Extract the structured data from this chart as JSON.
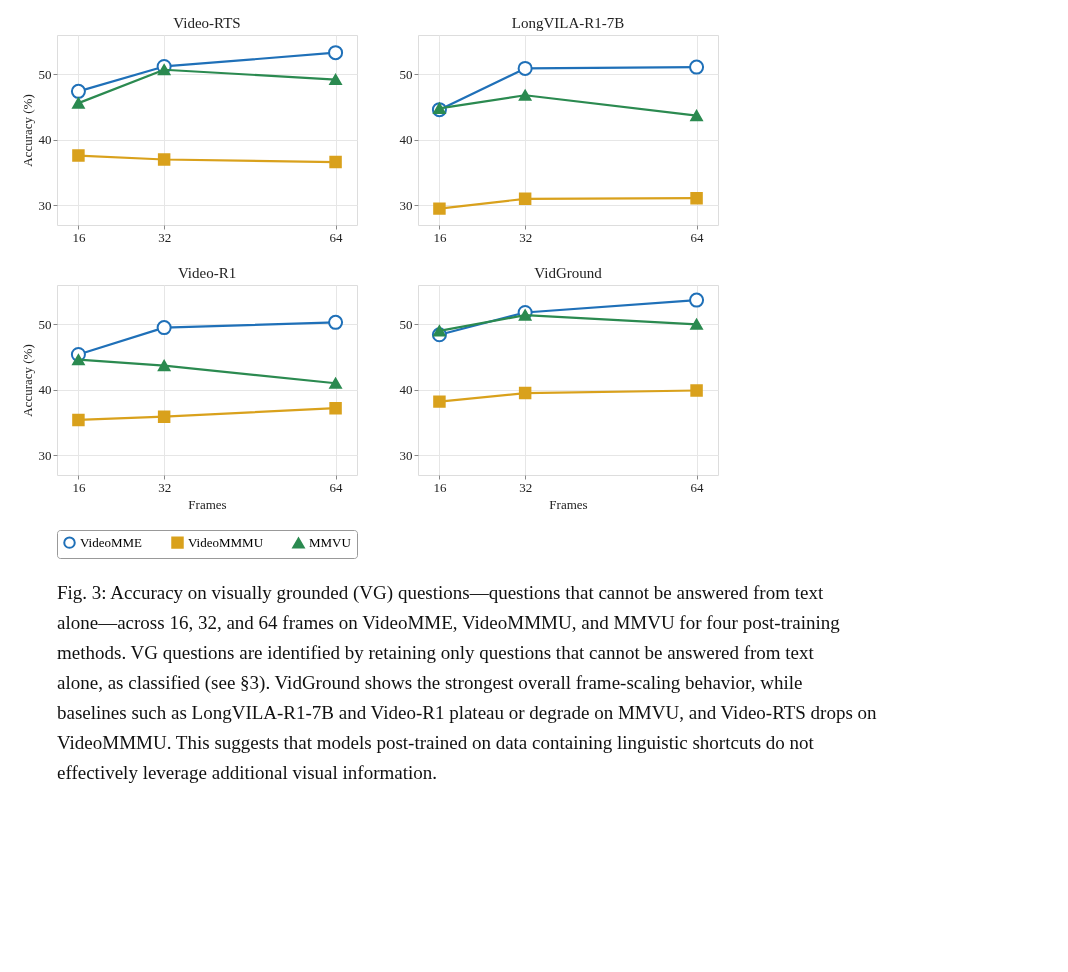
{
  "chart_data": [
    {
      "type": "line",
      "title": "Video-RTS",
      "ylabel": "Accuracy (%)",
      "x": [
        16,
        32,
        64
      ],
      "xlim": [
        12,
        68
      ],
      "ylim": [
        27,
        56
      ],
      "xticks": [
        16,
        32,
        64
      ],
      "yticks": [
        30,
        40,
        50
      ],
      "grid": true,
      "legend": "bottom",
      "line_style": "solid",
      "series": [
        {
          "name": "VideoMME",
          "color": "#1f70b8",
          "marker": "circle",
          "values": [
            47.4,
            51.2,
            53.3
          ]
        },
        {
          "name": "VideoMMMU",
          "color": "#d9a11c",
          "marker": "square",
          "values": [
            37.6,
            37.0,
            36.6
          ]
        },
        {
          "name": "MMVU",
          "color": "#2b8a50",
          "marker": "triangle",
          "values": [
            45.6,
            50.7,
            49.2
          ]
        }
      ]
    },
    {
      "type": "line",
      "title": "LongVILA-R1-7B",
      "x": [
        16,
        32,
        64
      ],
      "xlim": [
        12,
        68
      ],
      "ylim": [
        27,
        56
      ],
      "xticks": [
        16,
        32,
        64
      ],
      "yticks": [
        30,
        40,
        50
      ],
      "grid": true,
      "legend": "bottom",
      "line_style": "solid",
      "series": [
        {
          "name": "VideoMME",
          "color": "#1f70b8",
          "marker": "circle",
          "values": [
            44.6,
            50.9,
            51.1
          ]
        },
        {
          "name": "VideoMMMU",
          "color": "#d9a11c",
          "marker": "square",
          "values": [
            29.5,
            31.0,
            31.1
          ]
        },
        {
          "name": "MMVU",
          "color": "#2b8a50",
          "marker": "triangle",
          "values": [
            44.8,
            46.8,
            43.7
          ]
        }
      ]
    },
    {
      "type": "line",
      "title": "Video-R1",
      "xlabel": "Frames",
      "ylabel": "Accuracy (%)",
      "x": [
        16,
        32,
        64
      ],
      "xlim": [
        12,
        68
      ],
      "ylim": [
        27,
        56
      ],
      "xticks": [
        16,
        32,
        64
      ],
      "yticks": [
        30,
        40,
        50
      ],
      "grid": true,
      "legend": "bottom",
      "line_style": "solid",
      "series": [
        {
          "name": "VideoMME",
          "color": "#1f70b8",
          "marker": "circle",
          "values": [
            45.4,
            49.5,
            50.3
          ]
        },
        {
          "name": "VideoMMMU",
          "color": "#d9a11c",
          "marker": "square",
          "values": [
            35.4,
            35.9,
            37.2
          ]
        },
        {
          "name": "MMVU",
          "color": "#2b8a50",
          "marker": "triangle",
          "values": [
            44.6,
            43.7,
            41.0
          ]
        }
      ]
    },
    {
      "type": "line",
      "title": "VidGround",
      "xlabel": "Frames",
      "x": [
        16,
        32,
        64
      ],
      "xlim": [
        12,
        68
      ],
      "ylim": [
        27,
        56
      ],
      "xticks": [
        16,
        32,
        64
      ],
      "yticks": [
        30,
        40,
        50
      ],
      "grid": true,
      "legend": "bottom",
      "line_style": "solid",
      "series": [
        {
          "name": "VideoMME",
          "color": "#1f70b8",
          "marker": "circle",
          "values": [
            48.4,
            51.8,
            53.7
          ]
        },
        {
          "name": "VideoMMMU",
          "color": "#d9a11c",
          "marker": "square",
          "values": [
            38.2,
            39.5,
            39.9
          ]
        },
        {
          "name": "MMVU",
          "color": "#2b8a50",
          "marker": "triangle",
          "values": [
            49.0,
            51.4,
            50.0
          ]
        }
      ]
    },
    {
      "type": "other",
      "annotations": [
        "Fig. 3: Accuracy on visually grounded (VG) questions—questions that cannot be answered from text alone—across 16, 32, and 64 frames on VideoMME, VideoMMMU, and MMVU for four post-training methods. VG questions are identified by retaining only questions that cannot be answered from text alone, as classified (see §3). VidGround shows the strongest overall frame-scaling behavior, while baselines such as LongVILA-R1-7B and Video-R1 plateau or degrade on MMVU, and Video-RTS drops on VideoMMMU. This suggests that models post-trained on data containing linguistic shortcuts do not effectively leverage additional visual information."
      ]
    }
  ]
}
